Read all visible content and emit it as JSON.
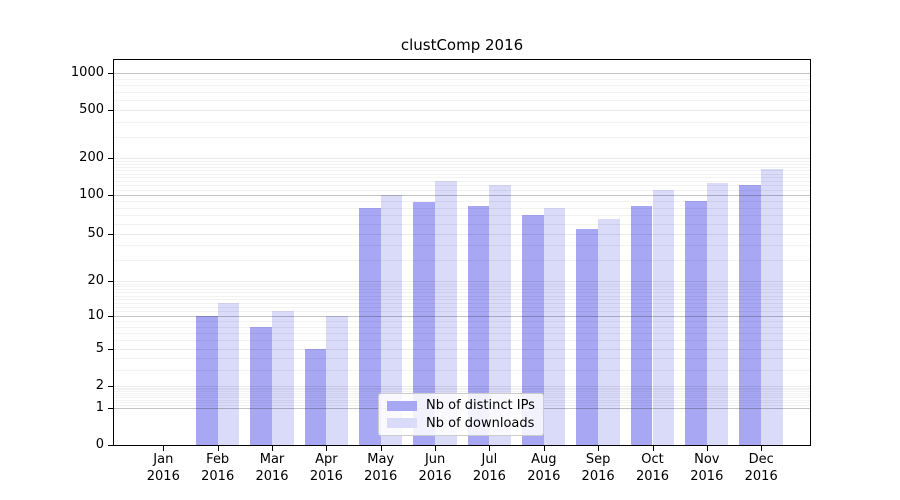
{
  "chart_data": {
    "type": "bar",
    "title": "clustComp 2016",
    "categories": [
      "Jan",
      "Feb",
      "Mar",
      "Apr",
      "May",
      "Jun",
      "Jul",
      "Aug",
      "Sep",
      "Oct",
      "Nov",
      "Dec"
    ],
    "category_year": "2016",
    "series": [
      {
        "name": "Nb of distinct IPs",
        "color": "#a7a7f4",
        "values": [
          0,
          10,
          8,
          5,
          80,
          88,
          82,
          70,
          55,
          82,
          90,
          120
        ]
      },
      {
        "name": "Nb of downloads",
        "color": "#dadaf9",
        "values": [
          0,
          13,
          11,
          10,
          100,
          130,
          120,
          80,
          65,
          110,
          125,
          165
        ]
      }
    ],
    "y_axis": {
      "scale": "symlog",
      "ticks": [
        0,
        1,
        2,
        5,
        10,
        20,
        50,
        100,
        200,
        500,
        1000
      ],
      "ylim": [
        0,
        1285
      ]
    },
    "x_axis": {
      "tick_label_lines": 2
    },
    "grid": {
      "horizontal": true,
      "vertical": false,
      "log_minor_lines": true
    },
    "legend": {
      "location": "lower-center",
      "entries": [
        "Nb of distinct IPs",
        "Nb of downloads"
      ]
    }
  }
}
